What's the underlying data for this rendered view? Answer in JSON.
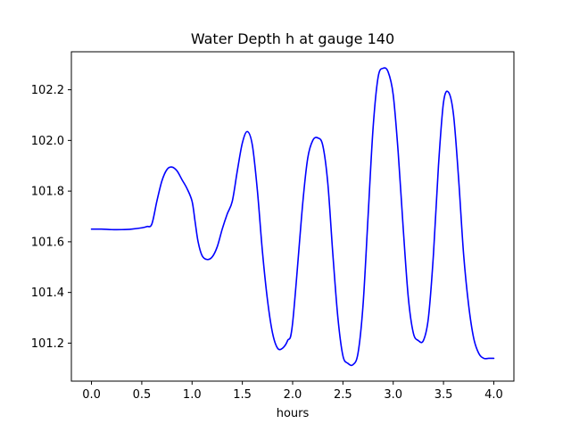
{
  "chart_data": {
    "type": "line",
    "title": "Water Depth h at gauge 140",
    "xlabel": "hours",
    "ylabel": "",
    "xlim": [
      -0.2,
      4.2
    ],
    "ylim": [
      101.05,
      102.35
    ],
    "x_ticks": [
      0.0,
      0.5,
      1.0,
      1.5,
      2.0,
      2.5,
      3.0,
      3.5,
      4.0
    ],
    "x_tick_labels": [
      "0.0",
      "0.5",
      "1.0",
      "1.5",
      "2.0",
      "2.5",
      "3.0",
      "3.5",
      "4.0"
    ],
    "y_ticks": [
      101.2,
      101.4,
      101.6,
      101.8,
      102.0,
      102.2
    ],
    "y_tick_labels": [
      "101.2",
      "101.4",
      "101.6",
      "101.8",
      "102.0",
      "102.2"
    ],
    "grid": false,
    "legend": "none",
    "series": [
      {
        "color": "#0000ff",
        "x": [
          0.0,
          0.1,
          0.2,
          0.3,
          0.4,
          0.5,
          0.55,
          0.6,
          0.65,
          0.7,
          0.75,
          0.8,
          0.85,
          0.9,
          0.95,
          1.0,
          1.03,
          1.06,
          1.1,
          1.15,
          1.2,
          1.25,
          1.3,
          1.35,
          1.4,
          1.45,
          1.5,
          1.55,
          1.6,
          1.65,
          1.7,
          1.75,
          1.8,
          1.85,
          1.9,
          1.95,
          2.0,
          2.1,
          2.15,
          2.2,
          2.25,
          2.3,
          2.35,
          2.4,
          2.45,
          2.5,
          2.55,
          2.6,
          2.65,
          2.7,
          2.75,
          2.8,
          2.85,
          2.9,
          2.95,
          3.0,
          3.05,
          3.1,
          3.15,
          3.2,
          3.25,
          3.3,
          3.35,
          3.4,
          3.45,
          3.5,
          3.55,
          3.6,
          3.65,
          3.7,
          3.75,
          3.8,
          3.85,
          3.9,
          3.95,
          4.0
        ],
        "y": [
          101.65,
          101.65,
          101.648,
          101.648,
          101.65,
          101.655,
          101.66,
          101.67,
          101.76,
          101.84,
          101.885,
          101.895,
          101.88,
          101.845,
          101.81,
          101.76,
          101.68,
          101.6,
          101.545,
          101.53,
          101.54,
          101.58,
          101.65,
          101.71,
          101.76,
          101.88,
          101.99,
          102.035,
          101.98,
          101.8,
          101.56,
          101.37,
          101.24,
          101.18,
          101.18,
          101.21,
          101.28,
          101.75,
          101.93,
          102.0,
          102.01,
          101.98,
          101.83,
          101.55,
          101.3,
          101.15,
          101.12,
          101.115,
          101.16,
          101.35,
          101.7,
          102.05,
          102.25,
          102.285,
          102.27,
          102.18,
          101.95,
          101.65,
          101.38,
          101.24,
          101.21,
          101.21,
          101.3,
          101.55,
          101.9,
          102.15,
          102.19,
          102.1,
          101.85,
          101.55,
          101.35,
          101.22,
          101.16,
          101.14,
          101.14,
          101.14
        ]
      }
    ]
  }
}
